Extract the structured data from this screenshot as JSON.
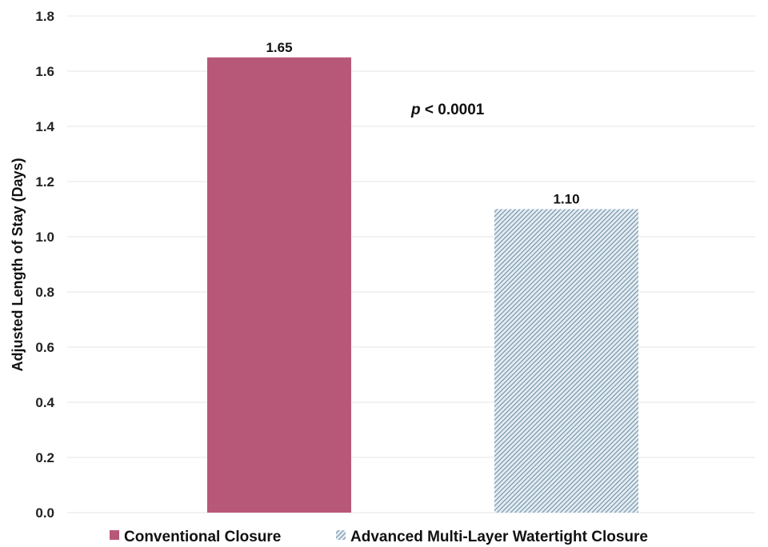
{
  "chart_data": {
    "type": "bar",
    "title": "",
    "xlabel": "",
    "ylabel": "Adjusted Length of Stay (Days)",
    "ylim": [
      0,
      1.8
    ],
    "yticks": [
      0.0,
      0.2,
      0.4,
      0.6,
      0.8,
      1.0,
      1.2,
      1.4,
      1.6,
      1.8
    ],
    "ytick_labels": [
      "0.0",
      "0.2",
      "0.4",
      "0.6",
      "0.8",
      "1.0",
      "1.2",
      "1.4",
      "1.6",
      "1.8"
    ],
    "grid": true,
    "legend_position": "bottom",
    "categories": [
      "Conventional Closure",
      "Advanced Multi-Layer Watertight Closure"
    ],
    "values": [
      1.65,
      1.1
    ],
    "value_labels": [
      "1.65",
      "1.10"
    ],
    "series": [
      {
        "name": "Conventional Closure",
        "color": "#b85878",
        "pattern": "solid"
      },
      {
        "name": "Advanced Multi-Layer Watertight Closure",
        "color": "#6f8fa6",
        "pattern": "diagonal-hatch"
      }
    ],
    "annotation": {
      "italic_part": "p",
      "rest": " < 0.0001"
    }
  }
}
